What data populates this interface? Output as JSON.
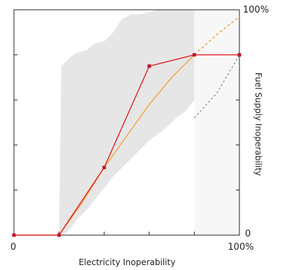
{
  "chart_data": {
    "type": "line",
    "xlabel": "Electricity Inoperability",
    "ylabel": "Fuel Supply Inoperability",
    "xlim": [
      0,
      100
    ],
    "ylim": [
      0,
      100
    ],
    "x_tick_labels": [
      "0",
      "100%"
    ],
    "y_tick_labels": [
      "0",
      "100%"
    ],
    "x_ticks": [
      0,
      20,
      40,
      60,
      80,
      100
    ],
    "y_ticks": [
      0,
      20,
      40,
      60,
      80,
      100
    ],
    "grid": false,
    "legend": "none",
    "series": [
      {
        "style": "red line with square markers",
        "color": "#e02020",
        "x": [
          0,
          20,
          40,
          60,
          80,
          100
        ],
        "y": [
          0,
          0,
          30,
          75,
          80,
          80
        ]
      },
      {
        "style": "orange line (dashed beyond x=80)",
        "color": "#f0a030",
        "x": [
          20,
          30,
          40,
          50,
          60,
          70,
          80,
          90,
          100
        ],
        "y": [
          0,
          14,
          30,
          44,
          58,
          70,
          80,
          89,
          97
        ],
        "dashed_from_x": 80
      },
      {
        "style": "gray dashed lower-band continuation",
        "color": "#888888",
        "x": [
          80,
          90,
          100
        ],
        "y": [
          52,
          63,
          80
        ]
      }
    ],
    "band": {
      "color": "#e6e6e6",
      "x": [
        20,
        21,
        23,
        25,
        28,
        32,
        36,
        40,
        44,
        48,
        52,
        56,
        60,
        64,
        68,
        72,
        76,
        80
      ],
      "upper": [
        0,
        75,
        77,
        79,
        81,
        82,
        85,
        86,
        90,
        96,
        98,
        98,
        99,
        100,
        100,
        100,
        100,
        100
      ],
      "lower": [
        0,
        0,
        1,
        3,
        7,
        11,
        16,
        21,
        26,
        30,
        34,
        38,
        42,
        45,
        48,
        52,
        55,
        60
      ],
      "light_region_x": [
        80,
        100
      ]
    }
  }
}
